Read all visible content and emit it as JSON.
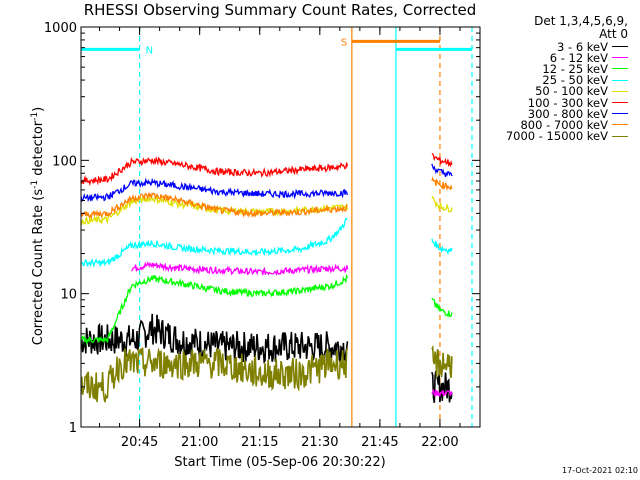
{
  "chart_data": {
    "type": "line",
    "title": "RHESSI Observing Summary Count Rates, Corrected",
    "xlabel": "Start Time (05-Sep-06 20:30:22)",
    "ylabel": "Corrected Count Rate (s⁻¹ detector⁻¹)",
    "y_scale": "log",
    "ylim": [
      1,
      1000
    ],
    "y_ticks": [
      1,
      10,
      100,
      1000
    ],
    "y_tick_labels": [
      "1",
      "10",
      "100",
      "1000"
    ],
    "xlim": [
      "20:30:22",
      "22:10:00"
    ],
    "x_ticks": [
      "20:45",
      "21:00",
      "21:15",
      "21:30",
      "21:45",
      "22:00"
    ],
    "legend_header": [
      "Det 1,3,4,5,6,9,",
      "Att 0"
    ],
    "legend_position": "right, outside plot",
    "grid": false,
    "series": [
      {
        "name": "3 - 6 keV",
        "color": "#000000",
        "segments": [
          {
            "x": [
              "20:30:22",
              "20:37",
              "20:44",
              "20:48",
              "20:55",
              "21:05",
              "21:15",
              "21:25",
              "21:33",
              "21:37"
            ],
            "y": [
              4.5,
              4.5,
              4.5,
              5.5,
              4.5,
              4.0,
              4.0,
              4.0,
              4.0,
              4.0
            ]
          },
          {
            "x": [
              "21:58",
              "22:03"
            ],
            "y": [
              2.0,
              2.0
            ]
          }
        ]
      },
      {
        "name": "6 - 12 keV",
        "color": "#ff00ff",
        "segments": [
          {
            "x": [
              "20:43",
              "20:48",
              "20:55",
              "21:05",
              "21:15",
              "21:25",
              "21:33",
              "21:37"
            ],
            "y": [
              15.5,
              16.5,
              15.5,
              15.0,
              14.5,
              15.0,
              15.5,
              15.5
            ]
          },
          {
            "x": [
              "21:58",
              "22:03"
            ],
            "y": [
              1.8,
              1.8
            ]
          }
        ]
      },
      {
        "name": "12 - 25 keV",
        "color": "#00ff00",
        "segments": [
          {
            "x": [
              "20:30:22",
              "20:37",
              "20:43",
              "20:48",
              "20:55",
              "21:05",
              "21:15",
              "21:25",
              "21:33",
              "21:37"
            ],
            "y": [
              4.5,
              4.5,
              11.5,
              13.0,
              12.0,
              10.5,
              10.0,
              10.5,
              11.5,
              13.0
            ]
          },
          {
            "x": [
              "21:58",
              "22:00",
              "22:03"
            ],
            "y": [
              9.0,
              7.5,
              7.0
            ]
          }
        ]
      },
      {
        "name": "25 - 50 keV",
        "color": "#00ffff",
        "segments": [
          {
            "x": [
              "20:30:22",
              "20:37",
              "20:43",
              "20:48",
              "20:55",
              "21:05",
              "21:15",
              "21:25",
              "21:32",
              "21:35",
              "21:37"
            ],
            "y": [
              17.0,
              17.0,
              23.0,
              24.0,
              22.0,
              21.0,
              20.5,
              21.5,
              25.0,
              30.0,
              37.0
            ]
          },
          {
            "x": [
              "21:58",
              "22:00",
              "22:03"
            ],
            "y": [
              25.0,
              22.0,
              21.0
            ]
          }
        ]
      },
      {
        "name": "50 - 100 keV",
        "color": "#e0e000",
        "segments": [
          {
            "x": [
              "20:30:22",
              "20:37",
              "20:43",
              "20:48",
              "20:55",
              "21:05",
              "21:15",
              "21:25",
              "21:33",
              "21:37"
            ],
            "y": [
              35.0,
              36.0,
              49.0,
              52.0,
              47.0,
              42.0,
              41.0,
              42.0,
              44.0,
              45.0
            ]
          },
          {
            "x": [
              "21:58",
              "22:00",
              "22:03"
            ],
            "y": [
              52.0,
              45.0,
              43.0
            ]
          }
        ]
      },
      {
        "name": "100 - 300 keV",
        "color": "#ff0000",
        "segments": [
          {
            "x": [
              "20:30:22",
              "20:37",
              "20:43",
              "20:48",
              "20:55",
              "21:05",
              "21:15",
              "21:25",
              "21:33",
              "21:37"
            ],
            "y": [
              70.0,
              72.0,
              97.0,
              100.0,
              93.0,
              82.0,
              80.0,
              85.0,
              88.0,
              92.0
            ]
          },
          {
            "x": [
              "21:58",
              "22:00",
              "22:03"
            ],
            "y": [
              108.0,
              100.0,
              95.0
            ]
          }
        ]
      },
      {
        "name": "300 - 800 keV",
        "color": "#0000ff",
        "segments": [
          {
            "x": [
              "20:30:22",
              "20:37",
              "20:43",
              "20:48",
              "20:55",
              "21:05",
              "21:15",
              "21:25",
              "21:33",
              "21:37"
            ],
            "y": [
              52.0,
              53.0,
              67.0,
              68.0,
              64.0,
              58.0,
              56.0,
              56.0,
              57.0,
              57.0
            ]
          },
          {
            "x": [
              "21:58",
              "22:00",
              "22:03"
            ],
            "y": [
              90.0,
              82.0,
              77.0
            ]
          }
        ]
      },
      {
        "name": "800 - 7000 keV",
        "color": "#ff8000",
        "segments": [
          {
            "x": [
              "20:30:22",
              "20:37",
              "20:43",
              "20:48",
              "20:55",
              "21:05",
              "21:15",
              "21:25",
              "21:33",
              "21:37"
            ],
            "y": [
              39.0,
              40.0,
              52.0,
              55.0,
              50.0,
              42.0,
              40.0,
              41.0,
              43.0,
              44.0
            ]
          },
          {
            "x": [
              "21:58",
              "22:00",
              "22:03"
            ],
            "y": [
              70.0,
              66.0,
              63.0
            ]
          }
        ]
      },
      {
        "name": "7000 - 15000 keV",
        "color": "#808000",
        "segments": [
          {
            "x": [
              "20:30:22",
              "20:37",
              "20:40",
              "20:48",
              "20:55",
              "21:05",
              "21:15",
              "21:25",
              "21:33",
              "21:37"
            ],
            "y": [
              2.0,
              2.0,
              3.0,
              3.0,
              3.0,
              3.0,
              2.5,
              2.5,
              3.0,
              3.0
            ]
          },
          {
            "x": [
              "21:58",
              "22:03"
            ],
            "y": [
              3.0,
              3.0
            ]
          }
        ]
      }
    ],
    "flag_bars": [
      {
        "label": "N",
        "color": "#00ffff",
        "x_start": "20:30:22",
        "x_end": "20:45",
        "y": 680
      },
      {
        "label": "",
        "color": "#00ffff",
        "x_start": "21:49",
        "x_end": "22:08",
        "y": 680
      },
      {
        "label": "S",
        "color": "#ff8000",
        "x_start": "21:38",
        "x_end": "22:00",
        "y": 780
      }
    ],
    "vertical_markers": [
      {
        "x": "20:45",
        "color": "#00ffff",
        "style": "dashed"
      },
      {
        "x": "21:38",
        "color": "#ff8000",
        "style": "solid"
      },
      {
        "x": "21:49",
        "color": "#00ffff",
        "style": "solid"
      },
      {
        "x": "22:00",
        "color": "#ff8000",
        "style": "dashed"
      },
      {
        "x": "22:08",
        "color": "#00ffff",
        "style": "dashed"
      }
    ]
  },
  "timestamp": "17-Oct-2021 02:10"
}
